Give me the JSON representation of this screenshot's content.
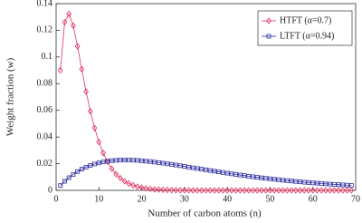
{
  "chart_data": {
    "type": "line",
    "xlabel": "Number of carbon atoms (n)",
    "ylabel": "Weight fraction (w)",
    "x": [
      1,
      2,
      3,
      4,
      5,
      6,
      7,
      8,
      9,
      10,
      11,
      12,
      13,
      14,
      15,
      16,
      17,
      18,
      19,
      20,
      21,
      22,
      23,
      24,
      25,
      26,
      27,
      28,
      29,
      30,
      31,
      32,
      33,
      34,
      35,
      36,
      37,
      38,
      39,
      40,
      41,
      42,
      43,
      44,
      45,
      46,
      47,
      48,
      49,
      50,
      51,
      52,
      53,
      54,
      55,
      56,
      57,
      58,
      59,
      60,
      61,
      62,
      63,
      64,
      65,
      66,
      67,
      68,
      69
    ],
    "series": [
      {
        "name": "HTFT (α=0.7)",
        "color": "#e0325f",
        "marker": "diamond",
        "values": [
          0.09,
          0.126,
          0.1323,
          0.1235,
          0.108,
          0.0908,
          0.0741,
          0.0593,
          0.0467,
          0.0363,
          0.028,
          0.0214,
          0.0162,
          0.0122,
          0.0092,
          0.0068,
          0.0051,
          0.0038,
          0.0028,
          0.0021,
          0.0015,
          0.0011,
          0.0008,
          0.0006,
          0.0004,
          0.0003,
          0.0002,
          0.0002,
          0.0001,
          0.0001,
          0,
          0,
          0,
          0,
          0,
          0,
          0,
          0,
          0,
          0,
          0,
          0,
          0,
          0,
          0,
          0,
          0,
          0,
          0,
          0,
          0,
          0,
          0,
          0,
          0,
          0,
          0,
          0,
          0,
          0,
          0,
          0,
          0,
          0,
          0,
          0,
          0,
          0,
          0
        ]
      },
      {
        "name": "LTFT (α=0.94)",
        "color": "#2e2ea0",
        "marker": "square",
        "values": [
          0.0036,
          0.0068,
          0.0095,
          0.012,
          0.0141,
          0.0159,
          0.0174,
          0.0187,
          0.0198,
          0.0206,
          0.0213,
          0.0219,
          0.0223,
          0.0225,
          0.0227,
          0.0228,
          0.0227,
          0.0226,
          0.0225,
          0.0222,
          0.0219,
          0.0216,
          0.0212,
          0.0208,
          0.0204,
          0.0199,
          0.0195,
          0.019,
          0.0185,
          0.018,
          0.0174,
          0.0169,
          0.0164,
          0.0159,
          0.0154,
          0.0149,
          0.0144,
          0.0139,
          0.0134,
          0.0129,
          0.0124,
          0.012,
          0.0115,
          0.0111,
          0.0106,
          0.0102,
          0.0098,
          0.0094,
          0.009,
          0.0087,
          0.0083,
          0.008,
          0.0076,
          0.0073,
          0.007,
          0.0067,
          0.0064,
          0.0061,
          0.0059,
          0.0056,
          0.0054,
          0.0051,
          0.0049,
          0.0047,
          0.0045,
          0.0043,
          0.0041,
          0.0039,
          0.0037
        ]
      }
    ],
    "xlim": [
      0,
      70
    ],
    "xticks": [
      0,
      10,
      20,
      30,
      40,
      50,
      60,
      70
    ],
    "ylim": [
      0,
      0.14
    ],
    "yticks": [
      0,
      0.02,
      0.04,
      0.06,
      0.08,
      0.1,
      0.12,
      0.14
    ],
    "grid": false,
    "legend": "upper right"
  }
}
